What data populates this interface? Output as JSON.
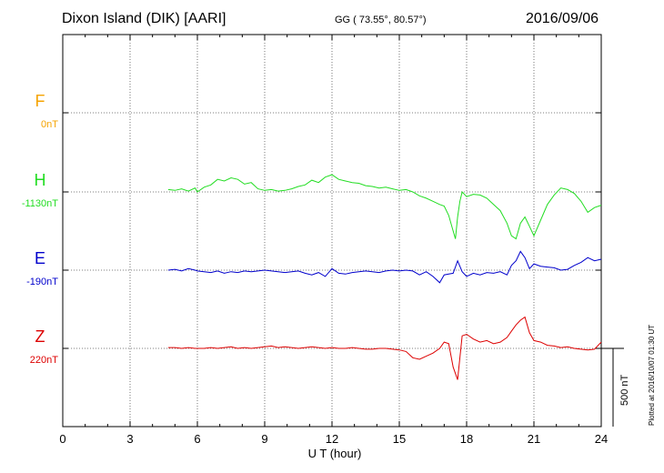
{
  "header": {
    "title": "Dixon Island (DIK)  [AARI]",
    "coords": "GG ( 73.55°,  80.57°)",
    "date": "2016/09/06"
  },
  "footer": {
    "plotted": "Plotted at 2016/10/07 01:30 UT",
    "scale_label": "500 nT"
  },
  "colors": {
    "F": "#f5a300",
    "H": "#22dd22",
    "E": "#0000cc",
    "Z": "#dd0000"
  },
  "chart_data": {
    "type": "line",
    "title": "Dixon Island (DIK)  [AARI]",
    "xlabel": "U T (hour)",
    "ylabel": "",
    "xlim": [
      0,
      24
    ],
    "x_ticks": [
      0,
      3,
      6,
      9,
      12,
      15,
      18,
      21,
      24
    ],
    "scale_bar_nT": 500,
    "grid": true,
    "series": [
      {
        "name": "F",
        "baseline_label": "0nT",
        "color": "#f5a300",
        "x": [],
        "values": []
      },
      {
        "name": "H",
        "baseline_label": "-1130nT",
        "color": "#22dd22",
        "x": [
          4.7,
          5.0,
          5.3,
          5.6,
          5.9,
          6.0,
          6.3,
          6.6,
          6.9,
          7.2,
          7.5,
          7.8,
          8.1,
          8.4,
          8.7,
          9.0,
          9.3,
          9.6,
          9.9,
          10.2,
          10.5,
          10.8,
          11.1,
          11.4,
          11.7,
          12.0,
          12.3,
          12.6,
          12.9,
          13.2,
          13.5,
          13.8,
          14.1,
          14.4,
          14.7,
          15.0,
          15.3,
          15.6,
          15.9,
          16.2,
          16.5,
          16.8,
          17.0,
          17.2,
          17.4,
          17.5,
          17.6,
          17.7,
          17.8,
          18.0,
          18.3,
          18.6,
          18.9,
          19.2,
          19.5,
          19.8,
          20.0,
          20.2,
          20.4,
          20.6,
          20.8,
          21.0,
          21.3,
          21.6,
          21.9,
          22.2,
          22.5,
          22.8,
          23.1,
          23.4,
          23.7,
          24.0
        ],
        "values": [
          15,
          10,
          20,
          5,
          25,
          0,
          30,
          45,
          80,
          70,
          90,
          80,
          50,
          60,
          20,
          10,
          15,
          5,
          10,
          20,
          35,
          45,
          75,
          60,
          95,
          110,
          80,
          70,
          60,
          55,
          40,
          35,
          25,
          30,
          20,
          10,
          15,
          0,
          -25,
          -40,
          -60,
          -80,
          -90,
          -150,
          -250,
          -300,
          -160,
          -60,
          0,
          -30,
          -15,
          -20,
          -40,
          -80,
          -120,
          -200,
          -280,
          -300,
          -200,
          -160,
          -220,
          -280,
          -180,
          -80,
          -20,
          25,
          15,
          -10,
          -60,
          -130,
          -100,
          -85
        ]
      },
      {
        "name": "E",
        "baseline_label": "-190nT",
        "color": "#0000cc",
        "x": [
          4.7,
          5.0,
          5.3,
          5.6,
          5.9,
          6.0,
          6.3,
          6.6,
          6.9,
          7.2,
          7.5,
          7.8,
          8.1,
          8.4,
          8.7,
          9.0,
          9.3,
          9.6,
          9.9,
          10.2,
          10.5,
          10.8,
          11.1,
          11.4,
          11.7,
          12.0,
          12.3,
          12.6,
          12.9,
          13.2,
          13.5,
          13.8,
          14.1,
          14.4,
          14.7,
          15.0,
          15.3,
          15.6,
          15.9,
          16.2,
          16.5,
          16.8,
          17.0,
          17.2,
          17.4,
          17.6,
          17.8,
          18.0,
          18.3,
          18.6,
          18.9,
          19.2,
          19.5,
          19.8,
          20.0,
          20.2,
          20.4,
          20.6,
          20.8,
          21.0,
          21.3,
          21.6,
          21.9,
          22.2,
          22.5,
          22.8,
          23.1,
          23.4,
          23.7,
          24.0
        ],
        "values": [
          0,
          5,
          -5,
          10,
          0,
          -5,
          -10,
          -15,
          -5,
          -20,
          -10,
          -15,
          -5,
          -10,
          -5,
          0,
          -5,
          -10,
          -15,
          -10,
          -5,
          -20,
          -30,
          -15,
          -40,
          10,
          -20,
          -25,
          -15,
          -10,
          -5,
          -10,
          -15,
          -5,
          0,
          -5,
          0,
          -5,
          -30,
          -10,
          -40,
          -80,
          -30,
          -25,
          -20,
          60,
          -10,
          -40,
          -20,
          -30,
          -15,
          -20,
          -10,
          -30,
          30,
          60,
          120,
          80,
          10,
          40,
          25,
          20,
          15,
          0,
          5,
          30,
          50,
          80,
          60,
          70
        ]
      },
      {
        "name": "Z",
        "baseline_label": "220nT",
        "color": "#dd0000",
        "x": [
          4.7,
          5.0,
          5.3,
          5.6,
          5.9,
          6.0,
          6.3,
          6.6,
          6.9,
          7.2,
          7.5,
          7.8,
          8.1,
          8.4,
          8.7,
          9.0,
          9.3,
          9.6,
          9.9,
          10.2,
          10.5,
          10.8,
          11.1,
          11.4,
          11.7,
          12.0,
          12.3,
          12.6,
          12.9,
          13.2,
          13.5,
          13.8,
          14.1,
          14.4,
          14.7,
          15.0,
          15.3,
          15.6,
          15.9,
          16.2,
          16.5,
          16.8,
          17.0,
          17.2,
          17.4,
          17.6,
          17.8,
          18.0,
          18.3,
          18.6,
          18.9,
          19.2,
          19.5,
          19.8,
          20.0,
          20.2,
          20.4,
          20.6,
          20.8,
          21.0,
          21.3,
          21.6,
          21.9,
          22.2,
          22.5,
          22.8,
          23.1,
          23.4,
          23.7,
          24.0
        ],
        "values": [
          5,
          5,
          0,
          5,
          0,
          0,
          0,
          5,
          0,
          5,
          10,
          0,
          5,
          0,
          5,
          10,
          15,
          5,
          10,
          5,
          0,
          5,
          10,
          5,
          0,
          5,
          0,
          0,
          5,
          0,
          -5,
          -5,
          0,
          0,
          -5,
          -10,
          -20,
          -60,
          -70,
          -50,
          -30,
          0,
          40,
          30,
          -120,
          -200,
          80,
          90,
          60,
          40,
          50,
          30,
          40,
          70,
          110,
          150,
          180,
          200,
          100,
          50,
          40,
          20,
          15,
          5,
          10,
          0,
          -5,
          -10,
          -5,
          40
        ]
      }
    ]
  }
}
